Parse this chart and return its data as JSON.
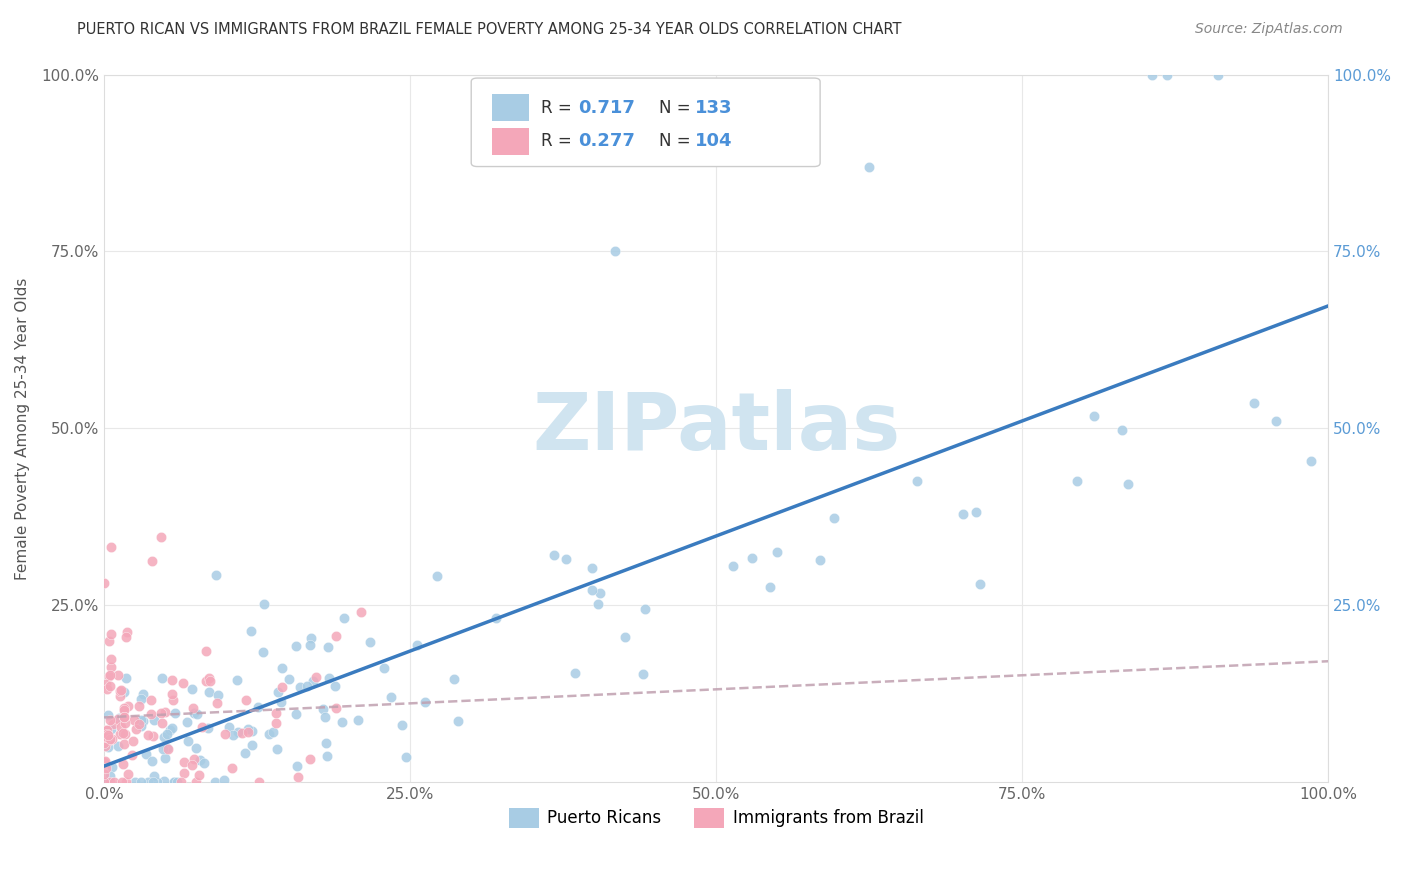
{
  "title": "PUERTO RICAN VS IMMIGRANTS FROM BRAZIL FEMALE POVERTY AMONG 25-34 YEAR OLDS CORRELATION CHART",
  "source": "Source: ZipAtlas.com",
  "ylabel": "Female Poverty Among 25-34 Year Olds",
  "xlim": [
    0,
    1.0
  ],
  "ylim": [
    0,
    1.0
  ],
  "blue_color": "#a8cce4",
  "pink_color": "#f4a7b9",
  "blue_line_color": "#3a7bbf",
  "regression_line_color": "#c0a0b0",
  "watermark_color": "#d0e4f0",
  "background_color": "#ffffff",
  "grid_color": "#e8e8e8",
  "legend_r1": "0.717",
  "legend_n1": "133",
  "legend_r2": "0.277",
  "legend_n2": "104",
  "right_tick_color": "#5b9bd5",
  "title_color": "#333333",
  "source_color": "#888888",
  "tick_color": "#666666"
}
